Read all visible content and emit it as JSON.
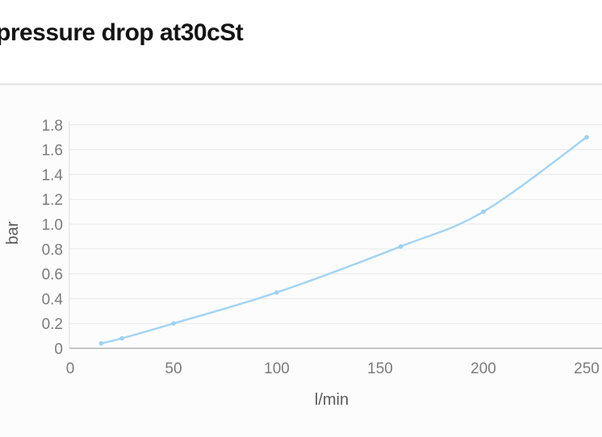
{
  "title": "pressure drop at30cSt",
  "chart_data": {
    "type": "line",
    "title": "pressure drop at30cSt",
    "xlabel": "l/min",
    "ylabel": "bar",
    "x": [
      15,
      25,
      50,
      100,
      160,
      200,
      250
    ],
    "y": [
      0.04,
      0.08,
      0.2,
      0.45,
      0.82,
      1.1,
      1.7
    ],
    "x_ticks": [
      "0",
      "50",
      "100",
      "150",
      "200",
      "250"
    ],
    "y_ticks": [
      "0",
      "0.2",
      "0.4",
      "0.6",
      "0.8",
      "1.0",
      "1.2",
      "1.4",
      "1.6",
      "1.8"
    ],
    "xlim": [
      0,
      250
    ],
    "ylim": [
      0,
      1.8
    ],
    "grid": "horizontal",
    "legend": "none",
    "line_color": "#a5d4f2",
    "marker_color": "#9fd0f1"
  },
  "colors": {
    "title_text": "#141414",
    "divider": "#e8e8e8",
    "plot_background": "#fcfcfc",
    "gridline": "#e9e9e9",
    "y_axis_line": "#dcdcdc",
    "x_axis_line": "#b3b3b3",
    "tick_text": "#7b7b7b",
    "axis_title_text": "#5a5a5a"
  }
}
